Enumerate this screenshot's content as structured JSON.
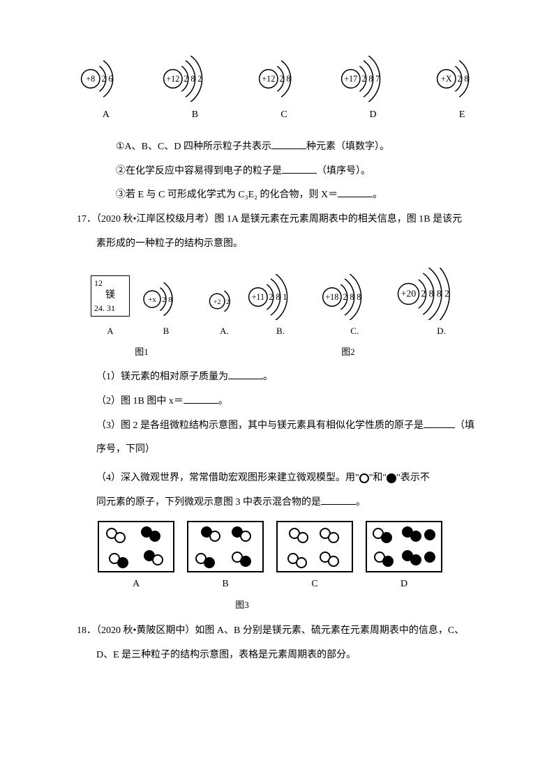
{
  "topDiagrams": {
    "items": [
      {
        "nucleus": "+8",
        "shells": [
          "2",
          "6"
        ],
        "label": "A",
        "arcs": 2
      },
      {
        "nucleus": "+12",
        "shells": [
          "2",
          "8",
          "2"
        ],
        "label": "B",
        "arcs": 3
      },
      {
        "nucleus": "+12",
        "shells": [
          "2",
          "8"
        ],
        "label": "C",
        "arcs": 2
      },
      {
        "nucleus": "+17",
        "shells": [
          "2",
          "8",
          "7"
        ],
        "label": "D",
        "arcs": 3
      },
      {
        "nucleus": "+X",
        "shells": [
          "2",
          "8"
        ],
        "label": "E",
        "arcs": 2
      }
    ]
  },
  "q16": {
    "l1_a": "①A、B、C、D 四种所示粒子共表示",
    "l1_b": "种元素（填数字）。",
    "l2_a": "②在化学反应中容易得到电子的粒子是",
    "l2_b": "（填序号）。",
    "l3_a": "③若 E 与 C 可形成化学式为 C₃E₂ 的化合物，则 X＝",
    "l3_b": "。"
  },
  "q17": {
    "num": "17．",
    "source": "（2020 秋•江岸区校级月考）",
    "intro_a": "图 1A 是镁元素在元素周期表中的相关信息，图 1B 是该元",
    "intro_b": "素形成的一种粒子的结构示意图。",
    "elemBox": {
      "num": "12",
      "name": "镁",
      "mass": "24. 31"
    },
    "fig1": {
      "A_label": "A",
      "B_label": "B",
      "B": {
        "nucleus": "+x",
        "shells": [
          "2",
          "8"
        ],
        "arcs": 2
      },
      "caption": "图1"
    },
    "fig2": {
      "items": [
        {
          "nucleus": "+2",
          "shells": [
            "2"
          ],
          "label": "A.",
          "arcs": 1
        },
        {
          "nucleus": "+11",
          "shells": [
            "2",
            "8",
            "1"
          ],
          "label": "B.",
          "arcs": 3
        },
        {
          "nucleus": "+18",
          "shells": [
            "2",
            "8",
            "8"
          ],
          "label": "C.",
          "arcs": 3
        },
        {
          "nucleus": "+20",
          "shells": [
            "2",
            "8",
            "8",
            "2"
          ],
          "label": "D.",
          "arcs": 4
        }
      ],
      "caption": "图2"
    },
    "p1_a": "（1）镁元素的相对原子质量为",
    "p1_b": "。",
    "p2_a": "（2）图 1B 图中 x＝",
    "p2_b": "。",
    "p3_a": "（3）图 2 是各组微粒结构示意图，其中与镁元素具有相似化学性质的原子是",
    "p3_b": "（填",
    "p3_c": "序号，下同）",
    "p4_a": "（4）深入微观世界，常常借助宏观图形来建立微观模型。用\"",
    "p4_b": "\"和\"",
    "p4_c": "\"表示不",
    "p4_d": "同元素的原子，下列微观示意图 3 中表示混合物的是",
    "p4_e": "。",
    "fig3": {
      "labels": [
        "A",
        "B",
        "C",
        "D"
      ],
      "caption": "图3"
    }
  },
  "q18": {
    "num": "18．",
    "source": "（2020 秋•黄陂区期中）",
    "intro_a": "如图 A、B 分别是镁元素、硫元素在元素周期表中的信息，C、",
    "intro_b": "D、E 是三种粒子的结构示意图，表格是元素周期表的部分。"
  },
  "style": {
    "stroke": "#000000",
    "bg": "#ffffff",
    "fontSize": 14
  }
}
